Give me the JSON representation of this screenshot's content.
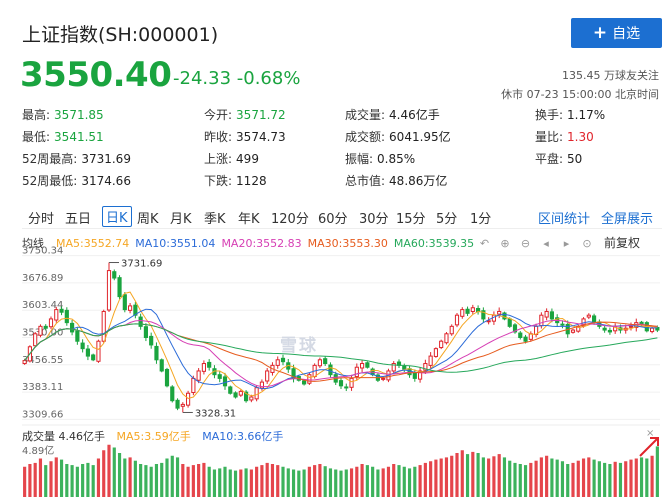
{
  "header": {
    "title": "上证指数(SH:000001)",
    "add_button": "自选",
    "price": "3550.40",
    "change": "-24.33",
    "change_pct": "-0.68%",
    "followers": "135.45 万球友关注",
    "status": "休市 07-23 15:00:00 北京时间"
  },
  "stats": [
    {
      "label": "最高:",
      "value": "3571.85",
      "tone": "green"
    },
    {
      "label": "今开:",
      "value": "3571.72",
      "tone": "green"
    },
    {
      "label": "成交量:",
      "value": "4.46亿手",
      "tone": ""
    },
    {
      "label": "换手:",
      "value": "1.17%",
      "tone": ""
    },
    {
      "label": "最低:",
      "value": "3541.51",
      "tone": "green"
    },
    {
      "label": "昨收:",
      "value": "3574.73",
      "tone": ""
    },
    {
      "label": "成交额:",
      "value": "6041.95亿",
      "tone": ""
    },
    {
      "label": "量比:",
      "value": "1.30",
      "tone": "red"
    },
    {
      "label": "52周最高:",
      "value": "3731.69",
      "tone": ""
    },
    {
      "label": "上涨:",
      "value": "499",
      "tone": ""
    },
    {
      "label": "振幅:",
      "value": "0.85%",
      "tone": ""
    },
    {
      "label": "平盘:",
      "value": "50",
      "tone": ""
    },
    {
      "label": "52周最低:",
      "value": "3174.66",
      "tone": ""
    },
    {
      "label": "下跌:",
      "value": "1128",
      "tone": ""
    },
    {
      "label": "总市值:",
      "value": "48.86万亿",
      "tone": ""
    }
  ],
  "tabs": [
    "分时",
    "五日",
    "日K",
    "周K",
    "月K",
    "季K",
    "年K",
    "120分",
    "60分",
    "30分",
    "15分",
    "5分",
    "1分"
  ],
  "active_tab": "日K",
  "right_links": [
    "区间统计",
    "全屏展示"
  ],
  "indicator": {
    "label": "均线",
    "ma": [
      {
        "text": "MA5:3552.74",
        "color": "#f5a623"
      },
      {
        "text": "MA10:3551.04",
        "color": "#2b6bd8"
      },
      {
        "text": "MA20:3552.83",
        "color": "#d63fb4"
      },
      {
        "text": "MA30:3553.30",
        "color": "#e65c1f"
      },
      {
        "text": "MA60:3539.35",
        "color": "#26a85b"
      }
    ],
    "adjust": "前复权"
  },
  "watermark": "雪球",
  "volume": {
    "label": "成交量 4.46亿手",
    "ma5": "MA5:3.59亿手",
    "ma10": "MA10:3.66亿手",
    "close": "×",
    "max_label": "4.89亿"
  },
  "chart_data": {
    "type": "candlestick",
    "y_ticks": [
      3750.34,
      3676.89,
      3603.44,
      3530.0,
      3456.55,
      3383.11,
      3309.66
    ],
    "ylim": [
      3300,
      3760
    ],
    "annotations": [
      {
        "text": "3731.69",
        "value": 3731.69,
        "index": 16
      },
      {
        "text": "3328.31",
        "value": 3328.31,
        "index": 30
      }
    ],
    "colors": {
      "up": "#e0242b",
      "down": "#1aa43f",
      "ma60": "#26a85b",
      "ma5": "#f5a623",
      "ma10": "#2b6bd8",
      "ma20": "#d63fb4",
      "ma30": "#e65c1f"
    },
    "close": [
      3468,
      3505,
      3540,
      3560,
      3555,
      3580,
      3605,
      3598,
      3570,
      3545,
      3520,
      3500,
      3480,
      3470,
      3520,
      3600,
      3710,
      3690,
      3640,
      3605,
      3615,
      3590,
      3560,
      3530,
      3510,
      3470,
      3440,
      3400,
      3360,
      3340,
      3350,
      3380,
      3420,
      3440,
      3460,
      3450,
      3430,
      3420,
      3400,
      3380,
      3370,
      3385,
      3360,
      3370,
      3395,
      3410,
      3440,
      3455,
      3470,
      3465,
      3445,
      3420,
      3415,
      3405,
      3430,
      3455,
      3470,
      3460,
      3430,
      3410,
      3400,
      3395,
      3420,
      3450,
      3460,
      3450,
      3430,
      3415,
      3420,
      3440,
      3460,
      3455,
      3445,
      3430,
      3420,
      3440,
      3460,
      3480,
      3500,
      3520,
      3540,
      3560,
      3590,
      3605,
      3595,
      3610,
      3600,
      3580,
      3575,
      3590,
      3600,
      3580,
      3560,
      3545,
      3530,
      3520,
      3540,
      3560,
      3590,
      3600,
      3580,
      3570,
      3565,
      3540,
      3550,
      3560,
      3580,
      3590,
      3570,
      3560,
      3550,
      3545,
      3560,
      3550,
      3555,
      3560,
      3570,
      3565,
      3548,
      3555,
      3550
    ],
    "volume_ratio": [
      0.55,
      0.6,
      0.62,
      0.7,
      0.58,
      0.65,
      0.72,
      0.68,
      0.6,
      0.58,
      0.55,
      0.6,
      0.62,
      0.58,
      0.7,
      0.85,
      0.95,
      0.9,
      0.8,
      0.7,
      0.72,
      0.66,
      0.6,
      0.58,
      0.55,
      0.6,
      0.62,
      0.7,
      0.75,
      0.72,
      0.6,
      0.55,
      0.58,
      0.6,
      0.62,
      0.55,
      0.5,
      0.52,
      0.55,
      0.5,
      0.48,
      0.5,
      0.52,
      0.5,
      0.55,
      0.58,
      0.62,
      0.6,
      0.58,
      0.55,
      0.52,
      0.5,
      0.48,
      0.5,
      0.55,
      0.58,
      0.6,
      0.56,
      0.52,
      0.5,
      0.48,
      0.5,
      0.52,
      0.55,
      0.6,
      0.58,
      0.55,
      0.5,
      0.52,
      0.55,
      0.6,
      0.58,
      0.55,
      0.52,
      0.55,
      0.58,
      0.62,
      0.65,
      0.68,
      0.7,
      0.72,
      0.75,
      0.8,
      0.85,
      0.78,
      0.82,
      0.8,
      0.72,
      0.7,
      0.74,
      0.78,
      0.72,
      0.66,
      0.62,
      0.6,
      0.58,
      0.62,
      0.66,
      0.72,
      0.75,
      0.7,
      0.68,
      0.65,
      0.6,
      0.62,
      0.66,
      0.7,
      0.72,
      0.68,
      0.65,
      0.62,
      0.6,
      0.64,
      0.62,
      0.65,
      0.68,
      0.7,
      0.72,
      0.7,
      0.75,
      0.92
    ]
  }
}
